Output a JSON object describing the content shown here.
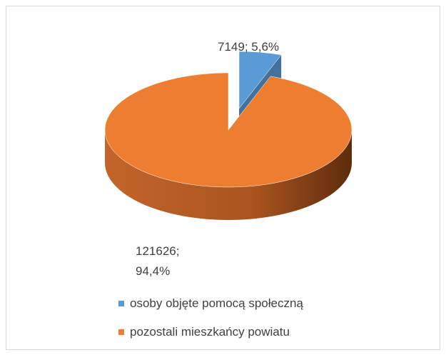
{
  "chart_data": {
    "type": "pie3d",
    "categories": [
      "osoby objęte pomocą społeczną",
      "pozostali mieszkańcy powiatu"
    ],
    "values": [
      7149,
      121626
    ],
    "value_labels": [
      "7149; 5,6%",
      "121626; 94,4%"
    ],
    "colors": [
      "#5b9bd5",
      "#ed7d31"
    ],
    "legend": "bottom"
  }
}
